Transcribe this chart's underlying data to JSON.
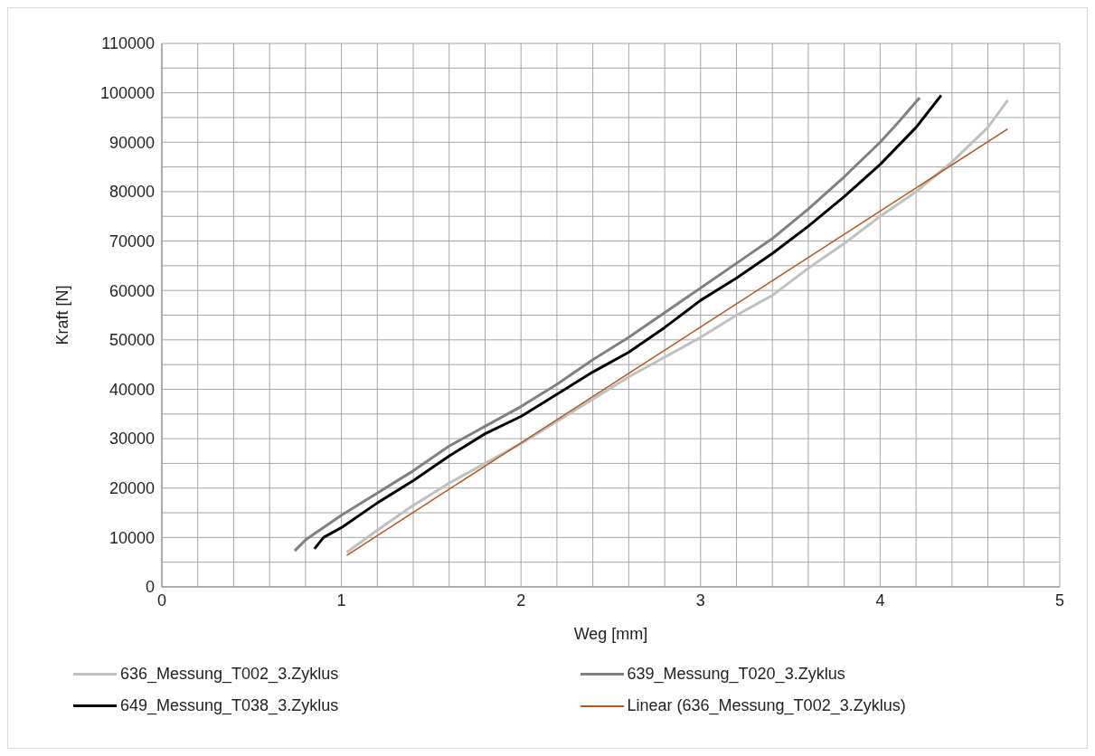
{
  "chart_data": {
    "type": "line",
    "xlabel": "Weg [mm]",
    "ylabel": "Kraft [N]",
    "xlim": [
      0,
      5
    ],
    "ylim": [
      0,
      110000
    ],
    "xticks": [
      0,
      {
        "value": 0.2,
        "label": null
      },
      {
        "value": 0.4,
        "label": null
      },
      {
        "value": 0.6,
        "label": null
      },
      {
        "value": 0.8,
        "label": null
      },
      1,
      {
        "value": 1.2,
        "label": null
      },
      {
        "value": 1.4,
        "label": null
      },
      {
        "value": 1.6,
        "label": null
      },
      {
        "value": 1.8,
        "label": null
      },
      2,
      {
        "value": 2.2,
        "label": null
      },
      {
        "value": 2.4,
        "label": null
      },
      {
        "value": 2.6,
        "label": null
      },
      {
        "value": 2.8,
        "label": null
      },
      3,
      {
        "value": 3.2,
        "label": null
      },
      {
        "value": 3.4,
        "label": null
      },
      {
        "value": 3.6,
        "label": null
      },
      {
        "value": 3.8,
        "label": null
      },
      4,
      {
        "value": 4.2,
        "label": null
      },
      {
        "value": 4.4,
        "label": null
      },
      {
        "value": 4.6,
        "label": null
      },
      {
        "value": 4.8,
        "label": null
      },
      5
    ],
    "yticks": [
      0,
      {
        "value": 5000,
        "label": null
      },
      10000,
      {
        "value": 15000,
        "label": null
      },
      20000,
      {
        "value": 25000,
        "label": null
      },
      30000,
      {
        "value": 35000,
        "label": null
      },
      40000,
      {
        "value": 45000,
        "label": null
      },
      50000,
      {
        "value": 55000,
        "label": null
      },
      60000,
      {
        "value": 65000,
        "label": null
      },
      70000,
      {
        "value": 75000,
        "label": null
      },
      80000,
      {
        "value": 85000,
        "label": null
      },
      90000,
      {
        "value": 95000,
        "label": null
      },
      100000,
      {
        "value": 105000,
        "label": null
      },
      110000
    ],
    "grid": true,
    "legend": "bottom",
    "marker": "none",
    "series": [
      {
        "name": "636_Messung_T002_3.Zyklus",
        "color": "#c0c0c0",
        "x": [
          1.03,
          1.2,
          1.4,
          1.6,
          1.8,
          2.0,
          2.2,
          2.4,
          2.6,
          2.8,
          3.0,
          3.2,
          3.4,
          3.6,
          3.8,
          4.0,
          4.2,
          4.4,
          4.6,
          4.71
        ],
        "values": [
          7000,
          11500,
          16500,
          21000,
          25000,
          29000,
          33500,
          38000,
          42500,
          46500,
          50500,
          55000,
          59000,
          64500,
          69500,
          75000,
          80000,
          86000,
          93000,
          98500
        ]
      },
      {
        "name": "639_Messung_T020_3.Zyklus",
        "color": "#808080",
        "x": [
          0.74,
          0.8,
          1.0,
          1.2,
          1.4,
          1.6,
          1.8,
          2.0,
          2.2,
          2.4,
          2.6,
          2.8,
          3.0,
          3.2,
          3.4,
          3.6,
          3.8,
          4.0,
          4.1,
          4.22
        ],
        "values": [
          7300,
          9500,
          14500,
          19000,
          23500,
          28500,
          32500,
          36500,
          41000,
          46000,
          50500,
          55500,
          60500,
          65500,
          70500,
          76500,
          83000,
          90000,
          94000,
          99000
        ]
      },
      {
        "name": "649_Messung_T038_3.Zyklus",
        "color": "#000000",
        "x": [
          0.85,
          0.9,
          1.0,
          1.2,
          1.4,
          1.6,
          1.8,
          2.0,
          2.2,
          2.4,
          2.6,
          2.8,
          3.0,
          3.2,
          3.4,
          3.6,
          3.8,
          4.0,
          4.2,
          4.34
        ],
        "values": [
          7700,
          10000,
          12000,
          17000,
          21500,
          26500,
          31000,
          34500,
          39000,
          43500,
          47500,
          52500,
          58000,
          62500,
          67500,
          73000,
          79000,
          85500,
          93000,
          99500
        ]
      },
      {
        "name": "Linear (636_Messung_T002_3.Zyklus)",
        "color": "#b8561b",
        "x": [
          1.03,
          4.71
        ],
        "values": [
          6400,
          92700
        ]
      }
    ]
  }
}
